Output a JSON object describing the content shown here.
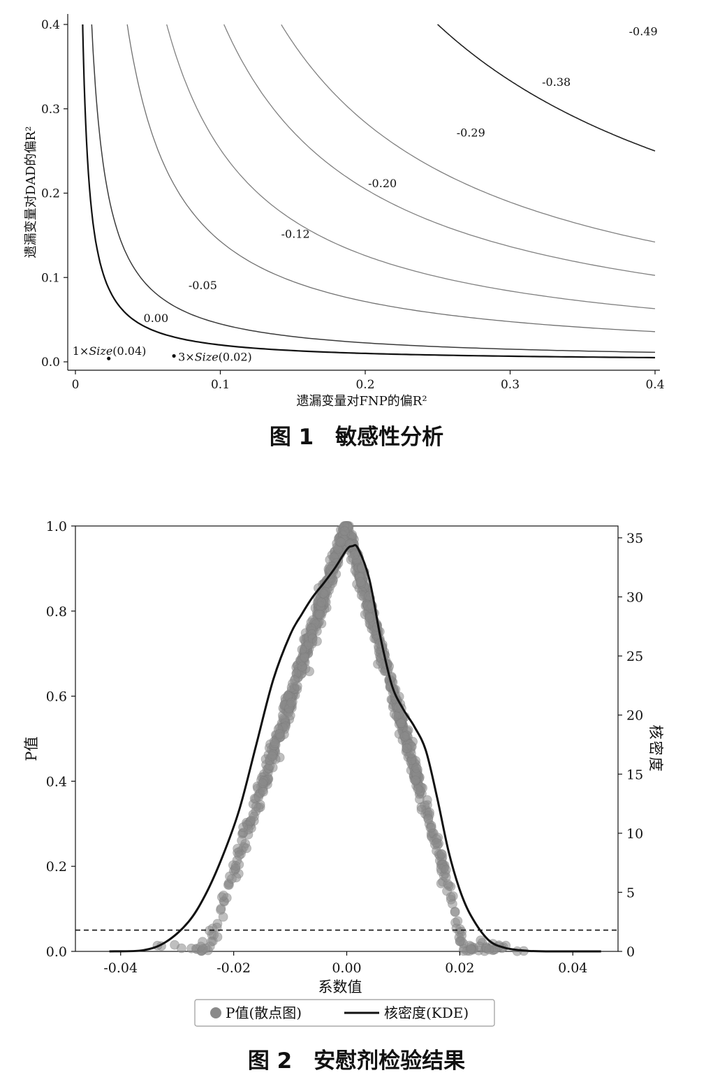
{
  "figure1": {
    "caption": "图 1　敏感性分析",
    "chart_data": {
      "type": "line",
      "xlabel": "遗漏变量对FNP的偏R²",
      "ylabel": "遗漏变量对DAD的偏R²",
      "xlim": [
        0,
        0.4
      ],
      "ylim": [
        0,
        0.4
      ],
      "x_ticks": [
        "0",
        "0.1",
        "0.2",
        "0.3",
        "0.4"
      ],
      "y_ticks": [
        "0.0",
        "0.1",
        "0.2",
        "0.3",
        "0.4"
      ],
      "contours": [
        {
          "label": "0.00",
          "k": 0.002,
          "color": "#111111",
          "width": 2.2,
          "label_x": 0.047,
          "label_y": 0.047
        },
        {
          "label": "-0.05",
          "k": 0.0045,
          "color": "#3a3a3a",
          "width": 1.5,
          "label_x": 0.078,
          "label_y": 0.086
        },
        {
          "label": "-0.12",
          "k": 0.0143,
          "color": "#707070",
          "width": 1.3,
          "label_x": 0.142,
          "label_y": 0.147
        },
        {
          "label": "-0.20",
          "k": 0.0252,
          "color": "#808080",
          "width": 1.3,
          "label_x": 0.202,
          "label_y": 0.207
        },
        {
          "label": "-0.29",
          "k": 0.041,
          "color": "#808080",
          "width": 1.3,
          "label_x": 0.263,
          "label_y": 0.267
        },
        {
          "label": "-0.38",
          "k": 0.0568,
          "color": "#808080",
          "width": 1.3,
          "label_x": 0.322,
          "label_y": 0.327
        },
        {
          "label": "-0.49",
          "k": 0.1,
          "color": "#222222",
          "width": 1.6,
          "label_x": 0.382,
          "label_y": 0.387
        }
      ],
      "benchmarks": [
        {
          "label_prefix": "1×",
          "label_italic": "Size",
          "label_suffix": "(0.04)",
          "x": 0.023,
          "y": 0.004
        },
        {
          "label_prefix": "3×",
          "label_italic": "Size",
          "label_suffix": "(0.02)",
          "x": 0.068,
          "y": 0.007
        }
      ]
    }
  },
  "figure2": {
    "caption": "图 2　安慰剂检验结果",
    "chart_data": {
      "type": "scatter",
      "xlabel": "系数值",
      "ylabel_left": "P值",
      "ylabel_right": "核密度",
      "xlim": [
        -0.048,
        0.048
      ],
      "ylim_left": [
        0,
        1.0
      ],
      "ylim_right": [
        0,
        36
      ],
      "x_ticks": [
        "-0.04",
        "-0.02",
        "0.00",
        "0.02",
        "0.04"
      ],
      "y_ticks_left": [
        "0.0",
        "0.2",
        "0.4",
        "0.6",
        "0.8",
        "1.0"
      ],
      "y_ticks_right": [
        "0",
        "5",
        "10",
        "15",
        "20",
        "25",
        "30",
        "35"
      ],
      "threshold_p": 0.05,
      "legend": {
        "scatter": "P值(散点图)",
        "kde": "核密度(KDE)"
      },
      "scatter_color": "#8a8a8a",
      "kde_x": [
        -0.042,
        -0.036,
        -0.032,
        -0.028,
        -0.025,
        -0.022,
        -0.019,
        -0.016,
        -0.013,
        -0.01,
        -0.008,
        -0.006,
        -0.004,
        -0.002,
        0.0,
        0.001,
        0.002,
        0.004,
        0.006,
        0.008,
        0.01,
        0.012,
        0.014,
        0.016,
        0.018,
        0.02,
        0.022,
        0.025,
        0.028,
        0.032,
        0.036,
        0.04,
        0.045
      ],
      "kde_y": [
        0.0,
        0.1,
        0.8,
        2.5,
        4.8,
        8.0,
        12.0,
        17.5,
        23.0,
        26.8,
        28.5,
        30.0,
        31.2,
        32.5,
        34.0,
        34.3,
        34.1,
        31.5,
        26.5,
        22.5,
        20.5,
        19.0,
        17.0,
        13.0,
        8.5,
        5.2,
        3.0,
        1.0,
        0.3,
        0.05,
        0.0,
        0.0,
        0.0
      ]
    }
  }
}
